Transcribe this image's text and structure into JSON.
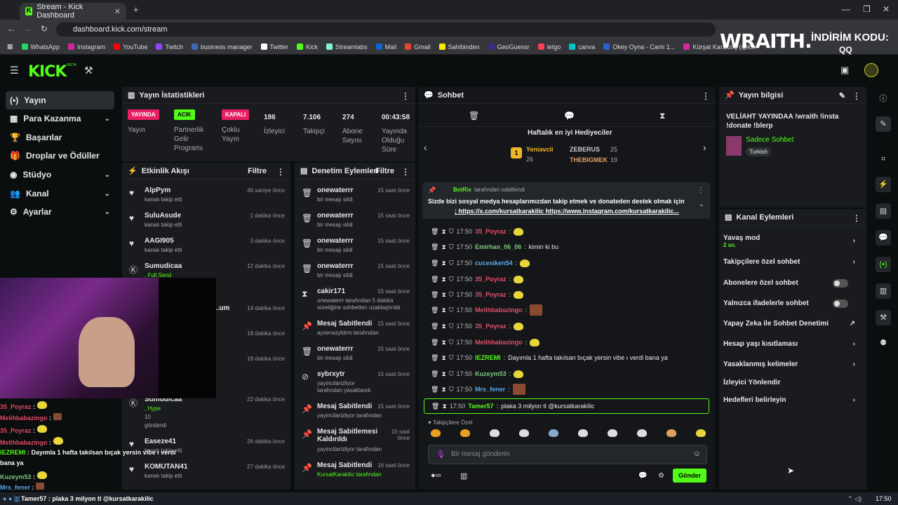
{
  "browser": {
    "tab_title": "Stream - Kick Dashboard",
    "new_tab": "+",
    "url": "dashboard.kick.com/stream",
    "bookmarks": [
      "WhatsApp",
      "Instagram",
      "YouTube",
      "Twitch",
      "business manager",
      "Twitter",
      "Kick",
      "Streamlabs",
      "Mail",
      "Gmail",
      "Sahibinden",
      "GeoGuessr",
      "letgo",
      "canva",
      "Okey Oyna - Canlı 1...",
      "Kürşat Karakılıç (@k..."
    ],
    "right_bookmark": "Tüm Yer İşaretleri"
  },
  "promo": {
    "brand": "WRAITH.",
    "code_label": "İNDİRİM KODU:",
    "code": "QQ"
  },
  "kick": {
    "logo": "KICK",
    "beta": "BETA"
  },
  "sidebar": {
    "items": [
      {
        "label": "Yayın",
        "icon": "(•)"
      },
      {
        "label": "Para Kazanma",
        "icon": "▦"
      },
      {
        "label": "Başarılar",
        "icon": "🏆"
      },
      {
        "label": "Droplar ve Ödüller",
        "icon": "🎁"
      },
      {
        "label": "Stüdyo",
        "icon": "◉"
      },
      {
        "label": "Kanal",
        "icon": "👥"
      },
      {
        "label": "Ayarlar",
        "icon": "⚙"
      }
    ]
  },
  "stats": {
    "title": "Yayın İstatistikleri",
    "items": [
      {
        "badge": "YAYINDA",
        "label": "Yayın",
        "color": "#e91e63"
      },
      {
        "badge": "ACIK",
        "label": "Partnerlik Gelir Programı",
        "color": "#53fc18"
      },
      {
        "badge": "KAPALI",
        "label": "Çoklu Yayın",
        "color": "#e91e63"
      },
      {
        "value": "186",
        "label": "İzleyici"
      },
      {
        "value": "7.106",
        "label": "Takipçi"
      },
      {
        "value": "274",
        "label": "Abone Sayısı"
      },
      {
        "value": "00:43:58",
        "label": "Yayında Olduğu Süre"
      }
    ]
  },
  "activity": {
    "title": "Etkinlik Akışı",
    "filter": "Filtre",
    "events": [
      {
        "name": "AlpPym",
        "sub": "kanalı takip etti",
        "time": "46 saniye önce"
      },
      {
        "name": "SuluAsude",
        "sub": "kanalı takip etti",
        "time": "1 dakika önce"
      },
      {
        "name": "AAGI905",
        "sub": "kanalı takip etti",
        "time": "3 dakika önce"
      },
      {
        "name": "Sumudicaa",
        "sub": ", Full Send",
        "time": "12 dakika önce"
      },
      {
        "name": "...um",
        "sub": "",
        "time": "14 dakika önce"
      },
      {
        "name": "",
        "sub": "",
        "time": "18 dakika önce"
      },
      {
        "name": "",
        "sub": "",
        "time": "18 dakika önce"
      },
      {
        "name": "Sumudicaa",
        "sub": ", Hype",
        "time": "22 dakika önce",
        "extra": "10",
        "extra2": "gönderdi"
      },
      {
        "name": "Easeze41",
        "sub": "kanalı takip etti",
        "time": "26 dakika önce"
      },
      {
        "name": "KOMUTAN41",
        "sub": "kanalı takip etti",
        "time": "27 dakika önce"
      }
    ]
  },
  "moderation": {
    "title": "Denetim Eylemleri",
    "filter": "Filtre",
    "events": [
      {
        "name": "onewaterrr",
        "sub": "bir mesajı sildi",
        "time": "15 saat önce",
        "icon": "🗑"
      },
      {
        "name": "onewaterrr",
        "sub": "bir mesajı sildi",
        "time": "15 saat önce",
        "icon": "🗑"
      },
      {
        "name": "onewaterrr",
        "sub": "bir mesajı sildi",
        "time": "15 saat önce",
        "icon": "🗑"
      },
      {
        "name": "onewaterrr",
        "sub": "bir mesajı sildi",
        "time": "15 saat önce",
        "icon": "🗑"
      },
      {
        "name": "cakir171",
        "sub": "onewaterrr tarafından 5 dakika süreliğine sohbetten uzaklaştırıldı",
        "time": "15 saat önce",
        "icon": "⧗"
      },
      {
        "name": "Mesaj Sabitlendi",
        "sub": "aysenazyldrm tarafından",
        "time": "15 saat önce",
        "icon": "📌"
      },
      {
        "name": "onewaterrr",
        "sub": "bir mesajı sildi",
        "time": "15 saat önce",
        "icon": "🗑"
      },
      {
        "name": "sybrxytr",
        "sub": "yayincilarizliyor tarafından yasaklandı",
        "time": "15 saat önce",
        "icon": "⊘"
      },
      {
        "name": "Mesaj Sabitlendi",
        "sub": "yayincilarizliyor tarafından",
        "time": "15 saat önce",
        "icon": "📌"
      },
      {
        "name": "Mesaj Sabitlemesi Kaldırıldı",
        "sub": "yayincilarizliyor tarafından",
        "time": "15 saat önce",
        "icon": "📌"
      },
      {
        "name": "Mesaj Sabitlendi",
        "sub": "KursatKarakilic tarafından",
        "time": "16 saat önce",
        "icon": "📌"
      }
    ]
  },
  "chat": {
    "title": "Sohbet",
    "gifters_title": "Haftalık en iyi Hediyeciler",
    "gifters": [
      {
        "rank": "1",
        "name": "Yeniavcii",
        "count": "26"
      },
      {
        "name": "ZEBERUS",
        "count": "25"
      },
      {
        "name": "THEBIGMEK",
        "count": "19"
      }
    ],
    "pinned_by": "BotRix",
    "pinned_suffix": "tarafından sabitlendi",
    "pinned_text": "Sizde bizi sosyal medya hesaplarımızdan takip etmek ve donateden destek olmak için",
    "pinned_links": "; https://x.com/kursatkarakilic https://www.instagram.com/kursatkarakilic...",
    "messages": [
      {
        "time": "17:50",
        "user": "35_Poyraz",
        "color": "#e0506a",
        "text": "",
        "emote": true
      },
      {
        "time": "17:50",
        "user": "Emirhan_06_06",
        "color": "#7ec87e",
        "text": "kimin ki bu",
        "emote": false
      },
      {
        "time": "17:50",
        "user": "cucesiken54",
        "color": "#5aa8e8",
        "text": "",
        "emote": true
      },
      {
        "time": "17:50",
        "user": "35_Poyraz",
        "color": "#e0506a",
        "text": "",
        "emote": true
      },
      {
        "time": "17:50",
        "user": "35_Poyraz",
        "color": "#e0506a",
        "text": "",
        "emote": true
      },
      {
        "time": "17:50",
        "user": "Melihbabazingo",
        "color": "#e0506a",
        "text": "",
        "emote2": true
      },
      {
        "time": "17:50",
        "user": "35_Poyraz",
        "color": "#e0506a",
        "text": "",
        "emote": true
      },
      {
        "time": "17:50",
        "user": "Melihbabazingo",
        "color": "#e0506a",
        "text": "",
        "emote": true
      },
      {
        "time": "17:50",
        "user": "IEZREMI",
        "color": "#53fc18",
        "text": "Dayımla 1 hafta takılsan bıçak yersin vibe ı verdi bana ya",
        "emote": false
      },
      {
        "time": "17:50",
        "user": "Kuzeym53",
        "color": "#7ec87e",
        "text": "",
        "emote": true
      },
      {
        "time": "17:50",
        "user": "Mrs_fener",
        "color": "#5aa8e8",
        "text": "",
        "emote2": true
      },
      {
        "time": "17:50",
        "user": "Tamer57",
        "color": "#53fc18",
        "text": "plaka 3 milyon tl @kursatkarakilic",
        "emote": false
      }
    ],
    "mode_label": "Takipçilere Özel",
    "input_placeholder": "Bir mesaj gönderin",
    "send": "Gönder"
  },
  "stream_info": {
    "title": "Yayın bilgisi",
    "text": "VELİAHT YAYINDAA !wraith !insta !donate !blerp",
    "category": "Sadece Sohbet",
    "language": "Turkish"
  },
  "channel_actions": {
    "title": "Kanal Eylemleri",
    "items": [
      {
        "label": "Yavaş mod",
        "sub": "2 sn.",
        "kind": "chev"
      },
      {
        "label": "Takipçilere özel sohbet",
        "kind": "chev"
      },
      {
        "label": "Abonelere özel sohbet",
        "kind": "toggle"
      },
      {
        "label": "Yalnızca ifadelerle sohbet",
        "kind": "toggle"
      },
      {
        "label": "Yapay Zeka ile Sohbet Denetimi",
        "kind": "ext"
      },
      {
        "label": "Hesap yaşı kısıtlaması",
        "kind": "chev"
      },
      {
        "label": "Yasaklanmış kelimeler",
        "kind": "chev"
      },
      {
        "label": "İzleyici Yönlendir",
        "kind": "none"
      },
      {
        "label": "Hedefleri belirleyin",
        "kind": "chev"
      }
    ]
  },
  "overlay_chat": [
    {
      "user": "35_Poyraz",
      "color": "#e0506a",
      "text": ""
    },
    {
      "user": "Melihbabazingo",
      "color": "#e0506a",
      "text": ""
    },
    {
      "user": "35_Poyraz",
      "color": "#e0506a",
      "text": ""
    },
    {
      "user": "Melihbabazingo",
      "color": "#e0506a",
      "text": ""
    },
    {
      "user": "IEZREMI",
      "color": "#53fc18",
      "text": "Dayımla 1 hafta takılsan bıçak yersin vibe ı verdi"
    },
    {
      "user": "",
      "color": "#ffffff",
      "text": "bana ya"
    },
    {
      "user": "Kuzeym53",
      "color": "#7ec87e",
      "text": ""
    },
    {
      "user": "Mrs_fener",
      "color": "#5aa8e8",
      "text": ""
    }
  ],
  "taskbar": {
    "text": "Tamer57 : plaka 3 milyon tl @kursatkarakilic",
    "time": "17:50"
  }
}
